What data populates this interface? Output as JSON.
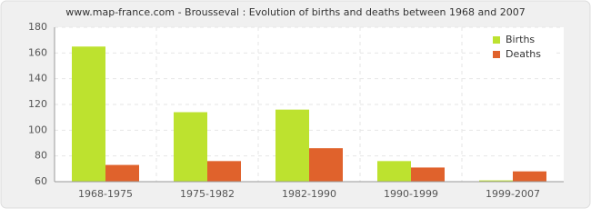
{
  "chart_data": {
    "type": "bar",
    "title": "www.map-france.com - Brousseval : Evolution of births and deaths between 1968 and 2007",
    "categories": [
      "1968-1975",
      "1975-1982",
      "1982-1990",
      "1990-1999",
      "1999-2007"
    ],
    "series": [
      {
        "name": "Births",
        "color": "#bde22f",
        "values": [
          165,
          114,
          116,
          76,
          61
        ]
      },
      {
        "name": "Deaths",
        "color": "#e0622c",
        "values": [
          73,
          76,
          86,
          71,
          68
        ]
      }
    ],
    "ylim": [
      60,
      180
    ],
    "yticks": [
      60,
      80,
      100,
      120,
      140,
      160,
      180
    ],
    "grid": true,
    "legend": "top-right"
  }
}
